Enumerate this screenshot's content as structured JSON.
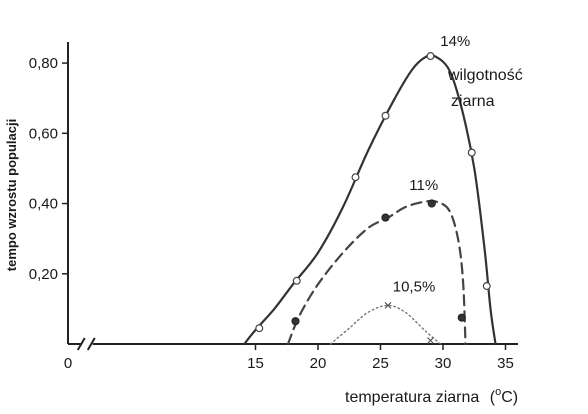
{
  "chart_data": {
    "type": "line",
    "title": "",
    "xlabel": "temperatura ziarna",
    "xunit_base": "(",
    "xunit_sup": "o",
    "xunit_tail": "C)",
    "ylabel": "tempo wzrostu populacji",
    "xlim": [
      0,
      36
    ],
    "ylim": [
      0,
      0.86
    ],
    "x_ticks": [
      {
        "value": 0,
        "label": "0"
      },
      {
        "value": 15,
        "label": "15"
      },
      {
        "value": 20,
        "label": "20"
      },
      {
        "value": 25,
        "label": "25"
      },
      {
        "value": 30,
        "label": "30"
      },
      {
        "value": 35,
        "label": "35"
      }
    ],
    "y_ticks": [
      {
        "value": 0.2,
        "label": "0,20"
      },
      {
        "value": 0.4,
        "label": "0,40"
      },
      {
        "value": 0.6,
        "label": "0,60"
      },
      {
        "value": 0.8,
        "label": "0,80"
      }
    ],
    "axis_break_at": 1.5,
    "grid": false,
    "annotation": [
      "wilgotność",
      "ziarna"
    ],
    "series": [
      {
        "name": "14%",
        "line_style": "solid",
        "marker": "open-circle",
        "color": "#333333",
        "curve": [
          [
            14.1,
            0.0
          ],
          [
            15.0,
            0.04
          ],
          [
            16.5,
            0.1
          ],
          [
            18.0,
            0.17
          ],
          [
            20.0,
            0.26
          ],
          [
            22.0,
            0.39
          ],
          [
            24.0,
            0.55
          ],
          [
            26.0,
            0.69
          ],
          [
            27.5,
            0.78
          ],
          [
            28.5,
            0.815
          ],
          [
            29.3,
            0.82
          ],
          [
            30.5,
            0.78
          ],
          [
            31.5,
            0.67
          ],
          [
            32.5,
            0.5
          ],
          [
            33.3,
            0.28
          ],
          [
            33.8,
            0.1
          ],
          [
            34.2,
            0.0
          ]
        ],
        "points": [
          [
            15.3,
            0.045
          ],
          [
            18.3,
            0.18
          ],
          [
            23.0,
            0.475
          ],
          [
            25.4,
            0.65
          ],
          [
            29.0,
            0.82
          ],
          [
            32.3,
            0.545
          ],
          [
            33.5,
            0.165
          ]
        ]
      },
      {
        "name": "11%",
        "line_style": "dashed",
        "marker": "filled-circle",
        "color": "#444444",
        "curve": [
          [
            17.6,
            0.0
          ],
          [
            18.5,
            0.08
          ],
          [
            20.0,
            0.17
          ],
          [
            22.0,
            0.26
          ],
          [
            24.0,
            0.33
          ],
          [
            25.6,
            0.36
          ],
          [
            27.0,
            0.39
          ],
          [
            28.5,
            0.405
          ],
          [
            29.5,
            0.405
          ],
          [
            30.5,
            0.38
          ],
          [
            31.2,
            0.3
          ],
          [
            31.6,
            0.18
          ],
          [
            31.8,
            0.0
          ]
        ],
        "points": [
          [
            18.2,
            0.065
          ],
          [
            25.4,
            0.36
          ],
          [
            29.1,
            0.4
          ],
          [
            31.5,
            0.075
          ]
        ]
      },
      {
        "name": "10,5%",
        "line_style": "dotted",
        "marker": "x",
        "color": "#777777",
        "curve": [
          [
            21.0,
            0.0
          ],
          [
            22.5,
            0.045
          ],
          [
            24.0,
            0.09
          ],
          [
            25.6,
            0.11
          ],
          [
            27.0,
            0.09
          ],
          [
            28.5,
            0.04
          ],
          [
            29.8,
            0.0
          ]
        ],
        "points": [
          [
            25.6,
            0.11
          ],
          [
            29.0,
            0.01
          ]
        ]
      }
    ]
  }
}
